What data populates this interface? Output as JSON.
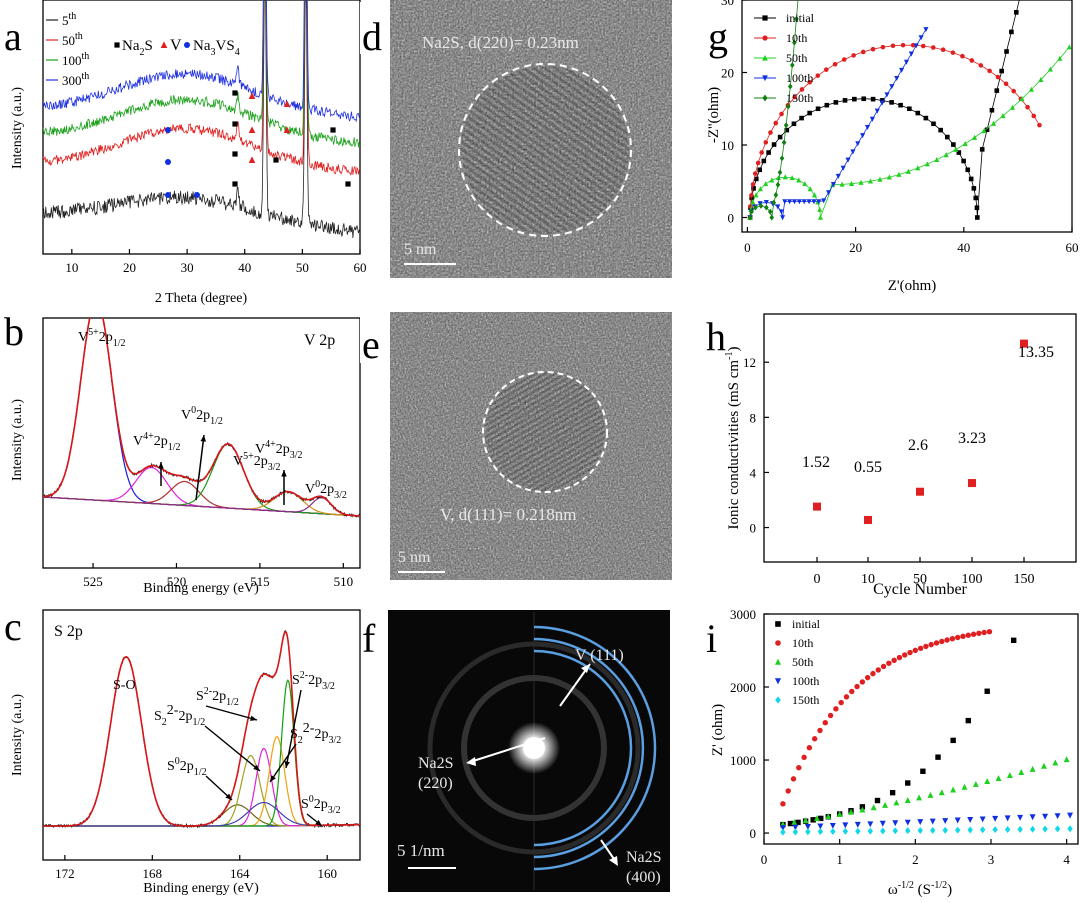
{
  "panels": {
    "a": {
      "letter": "a"
    },
    "b": {
      "letter": "b"
    },
    "c": {
      "letter": "c"
    },
    "d": {
      "letter": "d"
    },
    "e": {
      "letter": "e"
    },
    "f": {
      "letter": "f"
    },
    "g": {
      "letter": "g"
    },
    "h": {
      "letter": "h"
    },
    "i": {
      "letter": "i"
    }
  },
  "chart_data": [
    {
      "id": "a",
      "type": "line",
      "xlabel": "2 Theta (degree)",
      "ylabel": "Intensity (a.u.)",
      "xlim": [
        5,
        60
      ],
      "xticks": [
        10,
        20,
        30,
        40,
        50,
        60
      ],
      "legend": {
        "placement": "top-left",
        "entries": [
          {
            "name": "5th",
            "base": "5",
            "sup": "th",
            "color": "#222222"
          },
          {
            "name": "50th",
            "base": "50",
            "sup": "th",
            "color": "#e02020"
          },
          {
            "name": "100th",
            "base": "100",
            "sup": "th",
            "color": "#1aa01a"
          },
          {
            "name": "300th",
            "base": "300",
            "sup": "th",
            "color": "#2030e0"
          }
        ]
      },
      "marker_legend": [
        {
          "name": "Na2S",
          "text": "Na",
          "sub": "2",
          "tail": "S",
          "symbol": "square",
          "color": "#000000"
        },
        {
          "name": "V",
          "text": "V",
          "symbol": "triangle",
          "color": "#e02020"
        },
        {
          "name": "Na3VS4",
          "text": "Na",
          "sub": "3",
          "tail": "VS",
          "sub2": "4",
          "symbol": "circle",
          "color": "#1030e0"
        }
      ],
      "peaks": [
        38.8,
        43.5,
        50.6
      ],
      "series": [
        {
          "name": "5th",
          "color": "#222222",
          "offset": 0,
          "start": 0.25,
          "end": 0.0
        },
        {
          "name": "50th",
          "color": "#e02020",
          "offset": 1,
          "start": 0.35,
          "end": 0.1
        },
        {
          "name": "100th",
          "color": "#1aa01a",
          "offset": 2,
          "start": 0.3,
          "end": 0.1
        },
        {
          "name": "300th",
          "color": "#2030e0",
          "offset": 3,
          "start": 0.25,
          "end": 0.1
        }
      ]
    },
    {
      "id": "b",
      "type": "line",
      "xlabel": "Binding energy (eV)",
      "ylabel": "Intensity (a.u.)",
      "xlim": [
        528,
        509
      ],
      "xticks": [
        525,
        520,
        515,
        510
      ],
      "title": "V 2p",
      "components": [
        {
          "center": 524.8,
          "height": 1.0,
          "width": 1.3,
          "color": "#1a1adc"
        },
        {
          "center": 521.5,
          "height": 0.18,
          "width": 1.3,
          "color": "#e020e0"
        },
        {
          "center": 519.5,
          "height": 0.12,
          "width": 1.2,
          "color": "#b03030"
        },
        {
          "center": 516.9,
          "height": 0.32,
          "width": 1.3,
          "color": "#1a9a1a"
        },
        {
          "center": 513.3,
          "height": 0.1,
          "width": 1.2,
          "color": "#d09020"
        },
        {
          "center": 511.3,
          "height": 0.08,
          "width": 0.8,
          "color": "#8a2a8a"
        }
      ],
      "annotations": [
        {
          "base": "V",
          "sup": "5+",
          "tail": "2p",
          "sub": "1/2"
        },
        {
          "base": "V",
          "sup": "4+",
          "tail": "2p",
          "sub": "1/2"
        },
        {
          "base": "V",
          "sup": "0",
          "tail": "2p",
          "sub": "1/2"
        },
        {
          "base": "V",
          "sup": "5+",
          "tail": "2p",
          "sub": "3/2"
        },
        {
          "base": "V",
          "sup": "4+",
          "tail": "2p",
          "sub": "3/2"
        },
        {
          "base": "V",
          "sup": "0",
          "tail": "2p",
          "sub": "3/2"
        }
      ]
    },
    {
      "id": "c",
      "type": "line",
      "xlabel": "Binding energy (eV)",
      "ylabel": "Intensity (a.u.)",
      "xlim": [
        173,
        158.5
      ],
      "xticks": [
        172,
        168,
        164,
        160
      ],
      "title": "S 2p",
      "components": [
        {
          "center": 169.2,
          "height": 0.72,
          "width": 1.0,
          "color": "#1a1acc"
        },
        {
          "center": 164.1,
          "height": 0.09,
          "width": 0.9,
          "color": "#6a6a10"
        },
        {
          "center": 163.5,
          "height": 0.3,
          "width": 0.6,
          "color": "#a0a020"
        },
        {
          "center": 162.9,
          "height": 0.33,
          "width": 0.5,
          "color": "#e020e0"
        },
        {
          "center": 162.3,
          "height": 0.38,
          "width": 0.5,
          "color": "#f0a010"
        },
        {
          "center": 161.8,
          "height": 0.62,
          "width": 0.4,
          "color": "#10a010"
        },
        {
          "center": 162.9,
          "height": 0.1,
          "width": 1.0,
          "color": "#4040b0"
        }
      ],
      "annotations": [
        {
          "text": "S-O"
        },
        {
          "base": "S",
          "sup": "2-",
          "tail": "2p",
          "sub": "1/2"
        },
        {
          "base": "S",
          "sup": "2-",
          "tail": "2p",
          "sub": "3/2"
        },
        {
          "base": "S",
          "sub0": "2",
          "sup": "2-",
          "tail": "2p",
          "sub": "1/2"
        },
        {
          "base": "S",
          "sub0": "2",
          "sup": "2-",
          "tail": "2p",
          "sub": "3/2"
        },
        {
          "base": "S",
          "sup": "0",
          "tail": "2p",
          "sub": "1/2"
        },
        {
          "base": "S",
          "sup": "0",
          "tail": "2p",
          "sub": "3/2"
        }
      ]
    },
    {
      "id": "g",
      "type": "line",
      "xlabel": "Z'(ohm)",
      "ylabel": "-Z''(ohm)",
      "xlim": [
        -1,
        60
      ],
      "ylim": [
        -2,
        30
      ],
      "xticks": [
        0,
        20,
        40,
        60
      ],
      "yticks": [
        0,
        10,
        20,
        30
      ],
      "legend_placement": "top-left",
      "series": [
        {
          "name": "initial",
          "color": "#000000",
          "symbol": "square"
        },
        {
          "name": "10th",
          "color": "#e02020",
          "symbol": "circle"
        },
        {
          "name": "50th",
          "color": "#20d020",
          "symbol": "triangle"
        },
        {
          "name": "100th",
          "color": "#1030e0",
          "symbol": "triangle-down"
        },
        {
          "name": "150th",
          "color": "#108010",
          "symbol": "diamond"
        }
      ]
    },
    {
      "id": "h",
      "type": "scatter",
      "xlabel": "Cycle Number",
      "ylabel": "Ionic conductivities (mS cm",
      "ylabel_sup": "-1",
      "ylabel_tail": ")",
      "categories": [
        "0",
        "10",
        "50",
        "100",
        "150"
      ],
      "values": [
        1.52,
        0.55,
        2.6,
        3.23,
        13.35
      ],
      "labels": [
        "1.52",
        "0.55",
        "2.6",
        "3.23",
        "13.35"
      ],
      "ylim": [
        -2.5,
        15.5
      ],
      "yticks": [
        0,
        4,
        8,
        12
      ],
      "color": "#e02020"
    },
    {
      "id": "i",
      "type": "scatter",
      "xlabel": "ω",
      "xlabel_sup": "-1/2",
      "xlabel_tail": " (S",
      "xlabel_sup2": "-1/2",
      "xlabel_tail2": ")",
      "ylabel": "Z' (ohm)",
      "xlim": [
        0,
        4.15
      ],
      "ylim": [
        -150,
        3000
      ],
      "xticks": [
        0,
        1,
        2,
        3,
        4
      ],
      "yticks": [
        0,
        1000,
        2000,
        3000
      ],
      "legend_placement": "top-left",
      "series": [
        {
          "name": "initial",
          "color": "#000000",
          "symbol": "square"
        },
        {
          "name": "10th",
          "color": "#e02020",
          "symbol": "circle"
        },
        {
          "name": "50th",
          "color": "#20d020",
          "symbol": "triangle"
        },
        {
          "name": "100th",
          "color": "#1030e0",
          "symbol": "triangle-down"
        },
        {
          "name": "150th",
          "color": "#10d8e8",
          "symbol": "diamond"
        }
      ]
    }
  ],
  "micrographs": {
    "d": {
      "label": "Na2S, d(220)= 0.23nm",
      "scale": "5 nm"
    },
    "e": {
      "label": "V, d(111)= 0.218nm",
      "scale": "5 nm"
    },
    "f": {
      "scale": "5 1/nm",
      "v111": "V (111)",
      "na2s220": "Na2S",
      "na2s220_hkl": "(220)",
      "na2s400": "Na2S",
      "na2s400_hkl": "(400)"
    }
  }
}
